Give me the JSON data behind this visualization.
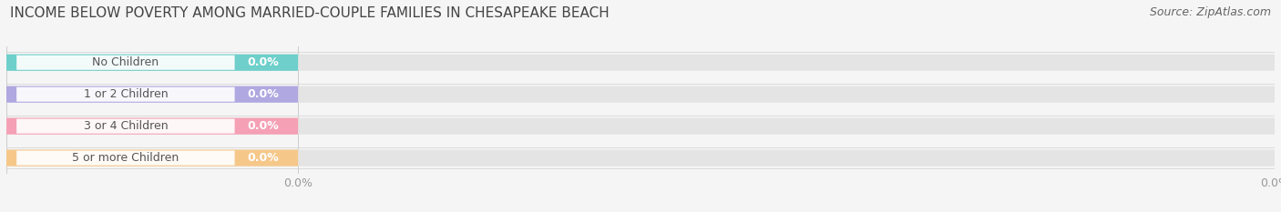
{
  "title": "INCOME BELOW POVERTY AMONG MARRIED-COUPLE FAMILIES IN CHESAPEAKE BEACH",
  "source_text": "Source: ZipAtlas.com",
  "categories": [
    "No Children",
    "1 or 2 Children",
    "3 or 4 Children",
    "5 or more Children"
  ],
  "values": [
    0.0,
    0.0,
    0.0,
    0.0
  ],
  "bar_colors": [
    "#6ecfcb",
    "#b0a8e0",
    "#f5a0b5",
    "#f5c88a"
  ],
  "bar_bg_color": "#e4e4e4",
  "background_color": "#f5f5f5",
  "title_fontsize": 11,
  "label_fontsize": 9,
  "value_fontsize": 9,
  "source_fontsize": 9,
  "label_color": "#555555",
  "value_color_on_bar": "#ffffff",
  "tick_color": "#999999"
}
